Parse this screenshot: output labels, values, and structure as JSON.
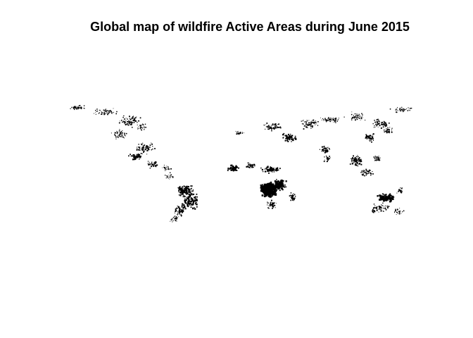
{
  "map": {
    "title": "Global map of wildfire Active Areas during June 2015",
    "background_color": "#ffffff",
    "fire_pixel_color": "#000000"
  }
}
